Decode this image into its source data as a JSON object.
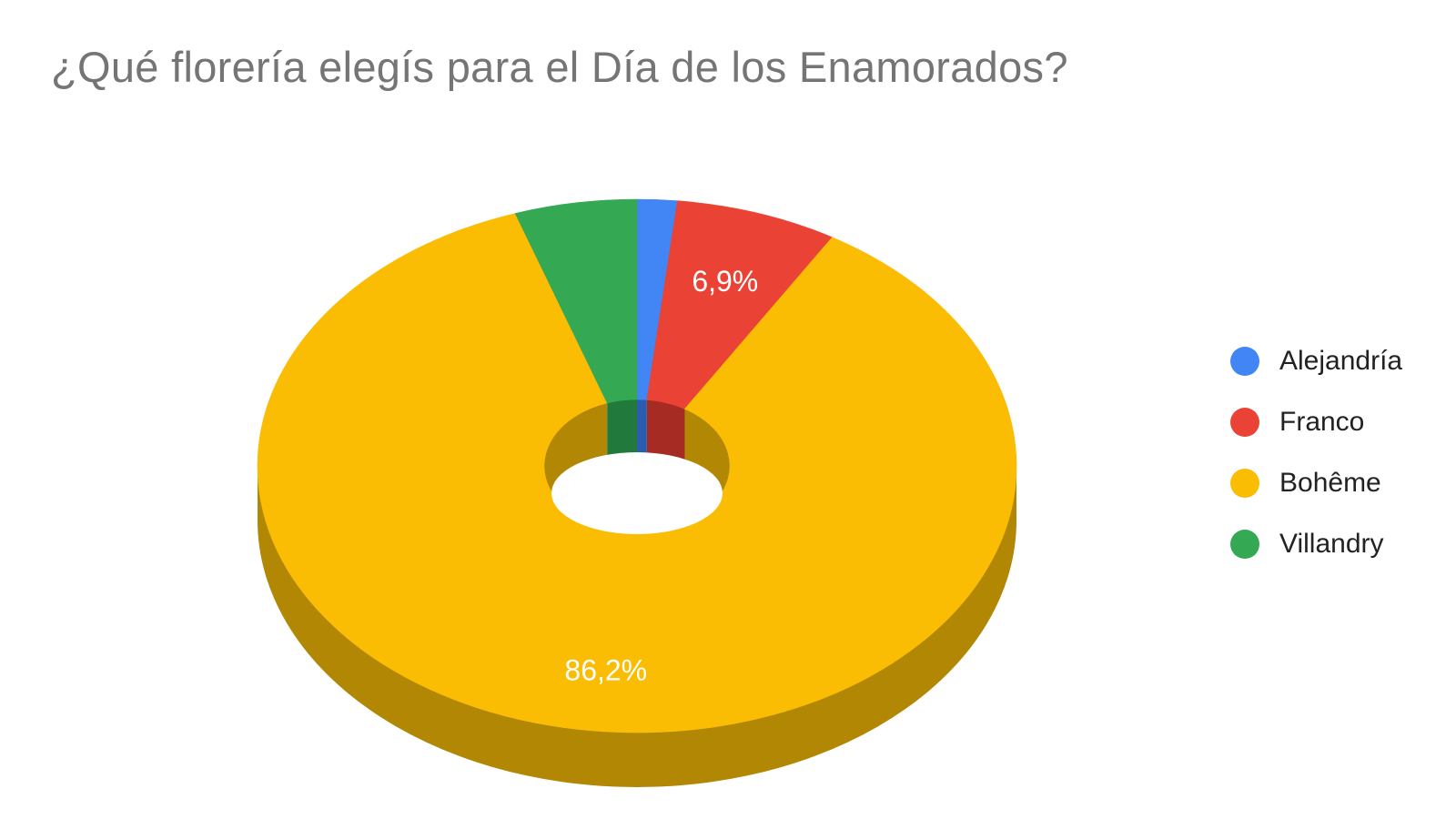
{
  "chart_data": {
    "type": "pie",
    "style": "3d-donut",
    "title": "¿Qué florería elegís para el Día de los Enamorados?",
    "categories": [
      "Alejandría",
      "Franco",
      "Bohême",
      "Villandry"
    ],
    "values": [
      1.7,
      6.9,
      86.2,
      5.2
    ],
    "data_labels": [
      "",
      "6,9%",
      "86,2%",
      ""
    ],
    "colors": [
      "#4285f4",
      "#ea4335",
      "#fbbc04",
      "#34a853"
    ],
    "side_colors": [
      "#2a5db0",
      "#a52b23",
      "#b28704",
      "#217a3b"
    ],
    "legend_position": "right"
  }
}
